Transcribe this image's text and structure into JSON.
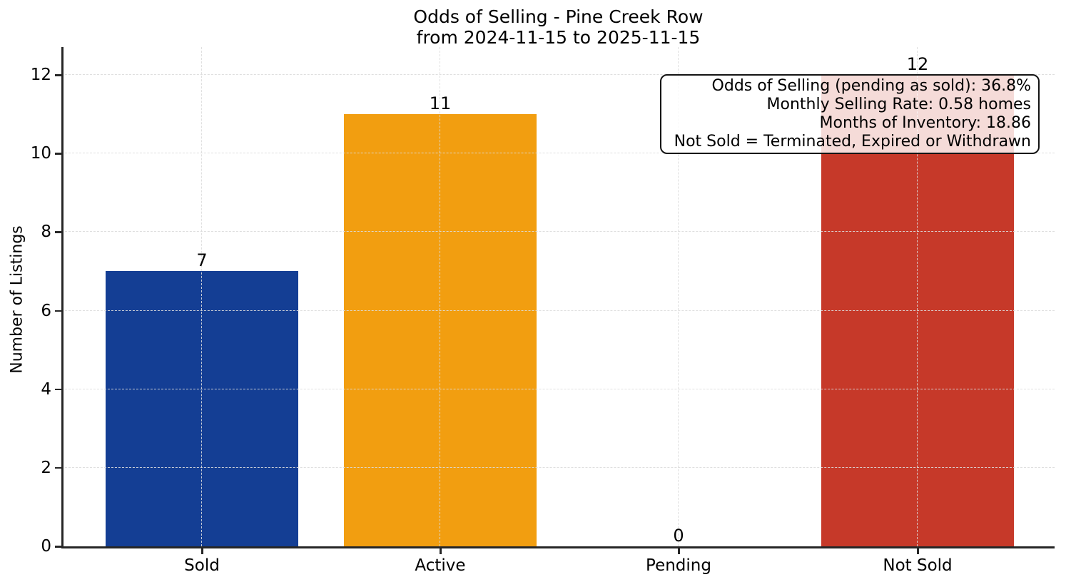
{
  "chart_data": {
    "type": "bar",
    "title": "Odds of Selling - Pine Creek Row",
    "subtitle": "from 2024-11-15 to 2025-11-15",
    "categories": [
      "Sold",
      "Active",
      "Pending",
      "Not Sold"
    ],
    "values": [
      7,
      11,
      0,
      12
    ],
    "bar_colors": [
      "#143e94",
      "#f29e10",
      null,
      "#c63929"
    ],
    "value_labels": [
      "7",
      "11",
      "0",
      "12"
    ],
    "ylabel": "Number of Listings",
    "yticks": [
      0,
      2,
      4,
      6,
      8,
      10,
      12
    ],
    "ylim": [
      0,
      12.7
    ],
    "grid": {
      "style": "dashed",
      "axes": "both",
      "color": "#dcdcdc",
      "above_bars": true
    },
    "legend": "none",
    "spine_color": "#262626",
    "annotation": {
      "lines": [
        "Odds of Selling (pending as sold): 36.8%",
        "Monthly Selling Rate: 0.58 homes",
        "Months of Inventory: 18.86",
        "Not Sold = Terminated, Expired or Withdrawn"
      ]
    }
  }
}
